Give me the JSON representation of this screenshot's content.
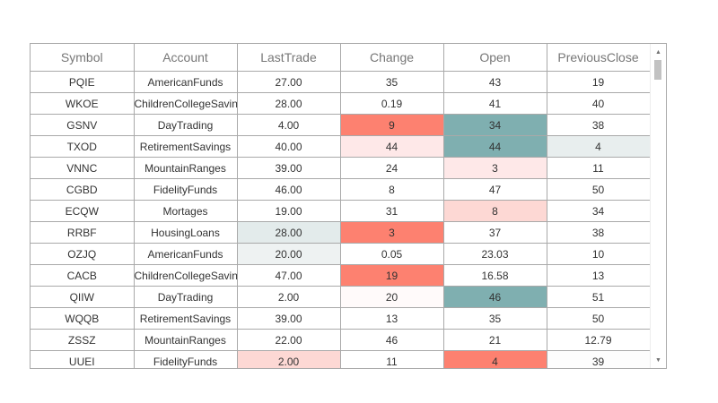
{
  "grid": {
    "columns": [
      "Symbol",
      "Account",
      "LastTrade",
      "Change",
      "Open",
      "PreviousClose"
    ],
    "rows": [
      {
        "cells": [
          "PQIE",
          "AmericanFunds",
          "27.00",
          "35",
          "43",
          "19"
        ],
        "bg": [
          "",
          "",
          "",
          "",
          "",
          ""
        ]
      },
      {
        "cells": [
          "WKOE",
          "ChildrenCollegeSavings",
          "28.00",
          "0.19",
          "41",
          "40"
        ],
        "bg": [
          "",
          "",
          "",
          "",
          "",
          ""
        ]
      },
      {
        "cells": [
          "GSNV",
          "DayTrading",
          "4.00",
          "9",
          "34",
          "38"
        ],
        "bg": [
          "",
          "",
          "",
          "#fd8170",
          "#7fafb0",
          ""
        ]
      },
      {
        "cells": [
          "TXOD",
          "RetirementSavings",
          "40.00",
          "44",
          "44",
          "4"
        ],
        "bg": [
          "",
          "",
          "",
          "#fee8e8",
          "#7fafb0",
          "#e8eeee"
        ]
      },
      {
        "cells": [
          "VNNC",
          "MountainRanges",
          "39.00",
          "24",
          "3",
          "11"
        ],
        "bg": [
          "",
          "",
          "",
          "",
          "#fee8e8",
          ""
        ]
      },
      {
        "cells": [
          "CGBD",
          "FidelityFunds",
          "46.00",
          "8",
          "47",
          "50"
        ],
        "bg": [
          "",
          "",
          "",
          "",
          "",
          ""
        ]
      },
      {
        "cells": [
          "ECQW",
          "Mortages",
          "19.00",
          "31",
          "8",
          "34"
        ],
        "bg": [
          "",
          "",
          "",
          "",
          "#fdd8d4",
          ""
        ]
      },
      {
        "cells": [
          "RRBF",
          "HousingLoans",
          "28.00",
          "3",
          "37",
          "38"
        ],
        "bg": [
          "",
          "",
          "#e3ebeb",
          "#fd8170",
          "",
          ""
        ]
      },
      {
        "cells": [
          "OZJQ",
          "AmericanFunds",
          "20.00",
          "0.05",
          "23.03",
          "10"
        ],
        "bg": [
          "",
          "",
          "#eef2f2",
          "",
          "",
          ""
        ]
      },
      {
        "cells": [
          "CACB",
          "ChildrenCollegeSavings",
          "47.00",
          "19",
          "16.58",
          "13"
        ],
        "bg": [
          "",
          "",
          "",
          "#fd8170",
          "",
          ""
        ]
      },
      {
        "cells": [
          "QIIW",
          "DayTrading",
          "2.00",
          "20",
          "46",
          "51"
        ],
        "bg": [
          "",
          "",
          "",
          "#fffafa",
          "#7fafb0",
          ""
        ]
      },
      {
        "cells": [
          "WQQB",
          "RetirementSavings",
          "39.00",
          "13",
          "35",
          "50"
        ],
        "bg": [
          "",
          "",
          "",
          "",
          "",
          ""
        ]
      },
      {
        "cells": [
          "ZSSZ",
          "MountainRanges",
          "22.00",
          "46",
          "21",
          "12.79"
        ],
        "bg": [
          "",
          "",
          "",
          "",
          "",
          ""
        ]
      },
      {
        "cells": [
          "UUEI",
          "FidelityFunds",
          "2.00",
          "11",
          "4",
          "39"
        ],
        "bg": [
          "",
          "",
          "#fdd8d4",
          "",
          "#fd8170",
          "#fdfdfd"
        ]
      }
    ]
  },
  "scrollbar": {
    "up_icon": "caret-up-icon",
    "down_icon": "caret-down-icon",
    "up_glyph": "▲",
    "down_glyph": "▼"
  }
}
